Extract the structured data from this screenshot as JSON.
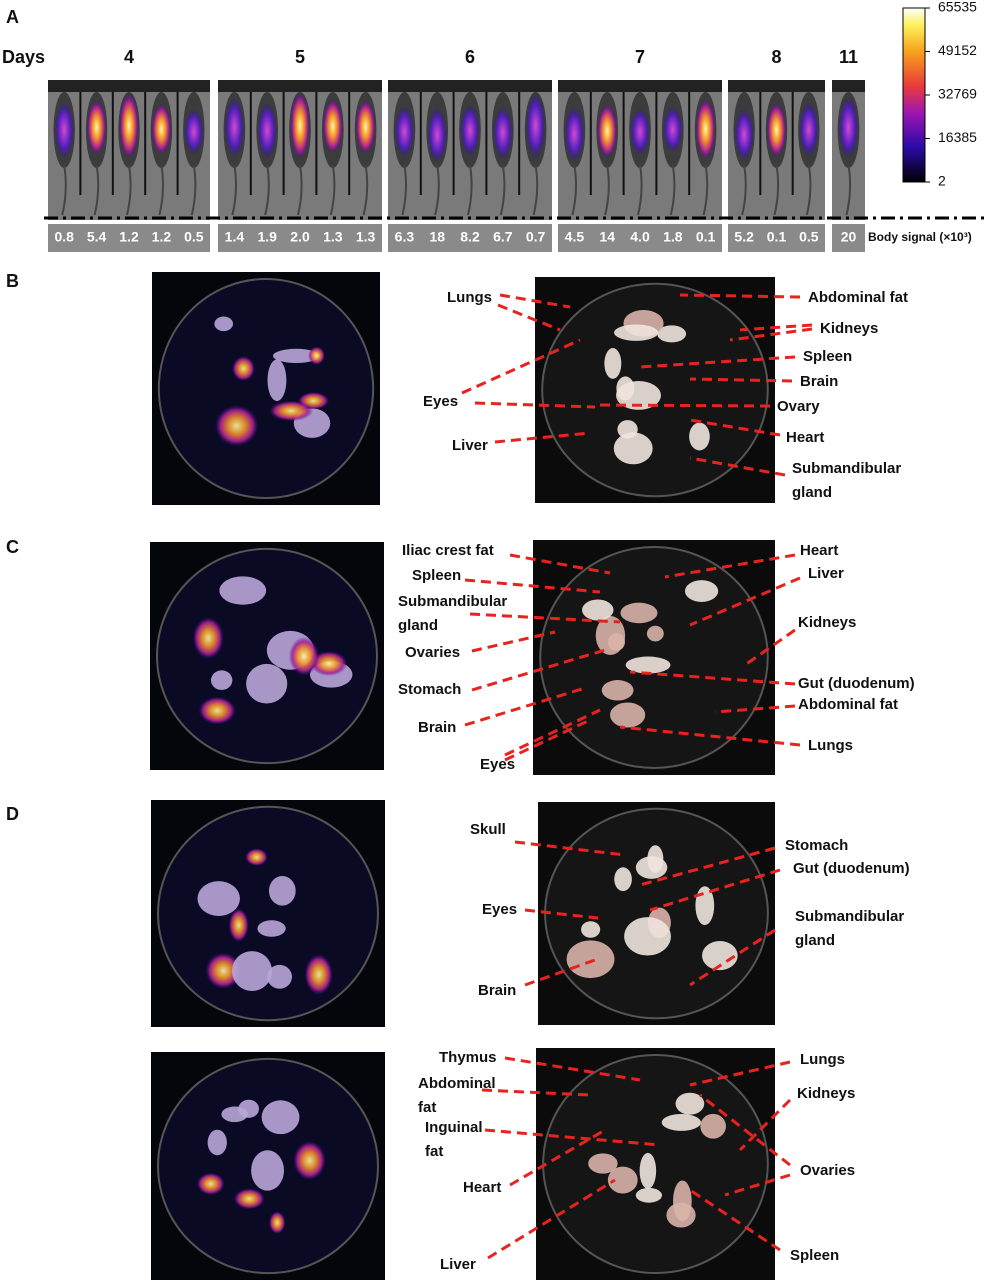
{
  "panel_a": {
    "label": "A",
    "days_label": "Days",
    "groups": [
      {
        "day": "4",
        "signals": [
          "0.8",
          "5.4",
          "1.2",
          "1.2",
          "0.5"
        ]
      },
      {
        "day": "5",
        "signals": [
          "1.4",
          "1.9",
          "2.0",
          "1.3",
          "1.3"
        ]
      },
      {
        "day": "6",
        "signals": [
          "6.3",
          "18",
          "8.2",
          "6.7",
          "0.7"
        ]
      },
      {
        "day": "7",
        "signals": [
          "4.5",
          "14",
          "4.0",
          "1.8",
          "0.1"
        ]
      },
      {
        "day": "8",
        "signals": [
          "5.2",
          "0.1",
          "0.5"
        ]
      },
      {
        "day": "11",
        "signals": [
          "20"
        ]
      }
    ],
    "signal_label": "Body signal (×10³)",
    "colorbar_ticks": [
      65535,
      49152,
      32769,
      16385,
      2
    ]
  },
  "panel_b": {
    "label": "B",
    "annotations": [
      [
        "Lungs"
      ],
      [
        "Abdominal fat"
      ],
      [
        "Kidneys"
      ],
      [
        "Spleen"
      ],
      [
        "Brain"
      ],
      [
        "Eyes"
      ],
      [
        "Ovary"
      ],
      [
        "Heart"
      ],
      [
        "Liver"
      ],
      [
        "Submandibular",
        "gland"
      ]
    ]
  },
  "panel_c": {
    "label": "C",
    "annotations": [
      [
        "Iliac crest fat"
      ],
      [
        "Heart"
      ],
      [
        "Spleen"
      ],
      [
        "Liver"
      ],
      [
        "Submandibular",
        "gland"
      ],
      [
        "Kidneys"
      ],
      [
        "Ovaries"
      ],
      [
        "Stomach"
      ],
      [
        "Gut (duodenum)"
      ],
      [
        "Abdominal fat"
      ],
      [
        "Brain"
      ],
      [
        "Lungs"
      ],
      [
        "Eyes"
      ]
    ]
  },
  "panel_d": {
    "label": "D",
    "annotations": [
      [
        "Skull"
      ],
      [
        "Stomach"
      ],
      [
        "Gut (duodenum)"
      ],
      [
        "Eyes"
      ],
      [
        "Submandibular",
        "gland"
      ],
      [
        "Brain"
      ],
      [
        "Thymus"
      ],
      [
        "Lungs"
      ],
      [
        "Abdominal",
        "fat"
      ],
      [
        "Kidneys"
      ],
      [
        "Inguinal",
        "fat"
      ],
      [
        "Ovaries"
      ],
      [
        "Heart"
      ],
      [
        "Liver"
      ],
      [
        "Spleen"
      ]
    ]
  }
}
